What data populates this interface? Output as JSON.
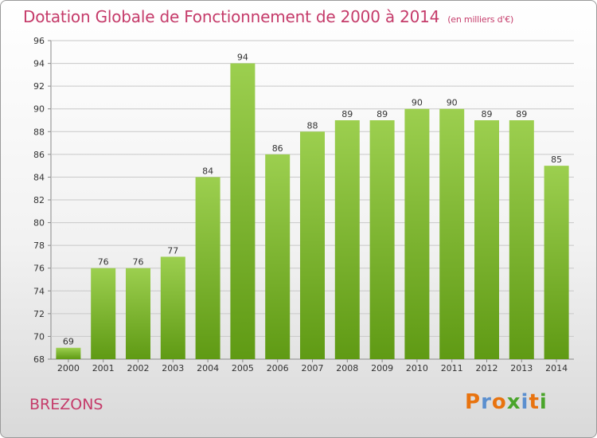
{
  "header": {
    "title": "Dotation Globale de Fonctionnement de 2000 à 2014",
    "subtitle": "(en milliers d'€)"
  },
  "footer": {
    "commune": "BREZONS",
    "logo_text": "Proxiti"
  },
  "colors": {
    "title": "#c53b6a",
    "bar_top": "#9ccf4f",
    "bar_bottom": "#5f9a14",
    "grid": "#c8c8c8",
    "logo_letters": [
      "#e8730f",
      "#5b8fcf",
      "#e8730f",
      "#4aa52b",
      "#5b8fcf",
      "#e8730f",
      "#4aa52b"
    ]
  },
  "chart_data": {
    "type": "bar",
    "title": "Dotation Globale de Fonctionnement de 2000 à 2014",
    "subtitle": "(en milliers d'€)",
    "categories": [
      "2000",
      "2001",
      "2002",
      "2003",
      "2004",
      "2005",
      "2006",
      "2007",
      "2008",
      "2009",
      "2010",
      "2011",
      "2012",
      "2013",
      "2014"
    ],
    "values": [
      69,
      76,
      76,
      77,
      84,
      94,
      86,
      88,
      89,
      89,
      90,
      90,
      89,
      89,
      85
    ],
    "ylim": [
      68,
      96
    ],
    "yticks": [
      68,
      70,
      72,
      74,
      76,
      78,
      80,
      82,
      84,
      86,
      88,
      90,
      92,
      94,
      96
    ],
    "grid": true,
    "legend": "none"
  }
}
